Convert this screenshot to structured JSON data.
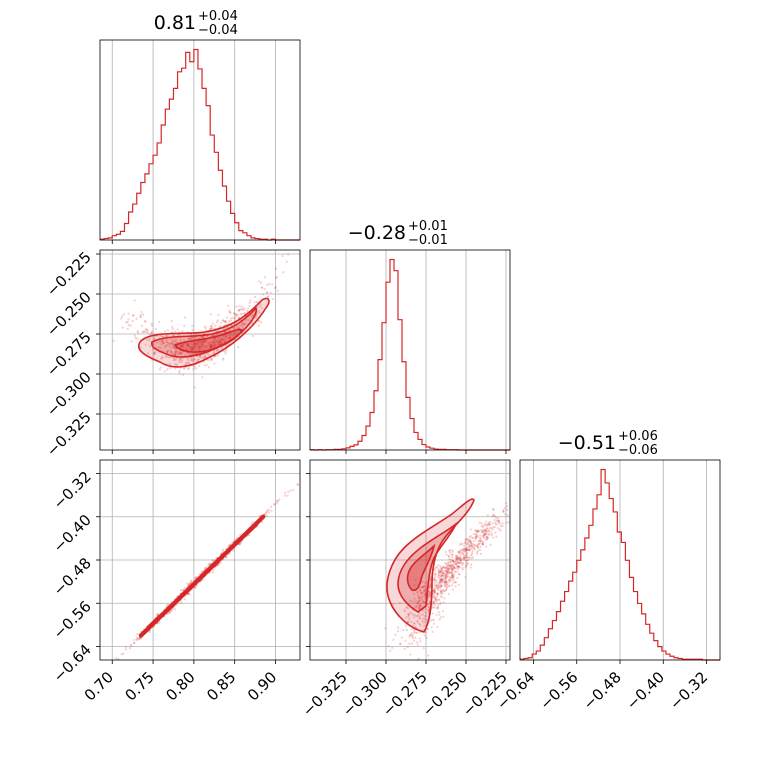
{
  "chart_data": {
    "type": "corner",
    "color": "#d62728",
    "grid": true,
    "parameters": [
      {
        "median": "0.81",
        "plus": "+0.04",
        "minus": "−0.04",
        "range": [
          0.685,
          0.93
        ],
        "ticks": [
          0.7,
          0.75,
          0.8,
          0.85,
          0.9
        ],
        "tick_labels": [
          "0.70",
          "0.75",
          "0.80",
          "0.85",
          "0.90"
        ]
      },
      {
        "median": "−0.28",
        "plus": "+0.01",
        "minus": "−0.01",
        "range": [
          -0.3475,
          -0.2225
        ],
        "ticks": [
          -0.325,
          -0.3,
          -0.275,
          -0.25,
          -0.225
        ],
        "tick_labels": [
          "−0.325",
          "−0.300",
          "−0.275",
          "−0.250",
          "−0.225"
        ]
      },
      {
        "median": "−0.51",
        "plus": "+0.06",
        "minus": "−0.06",
        "range": [
          -0.665,
          -0.295
        ],
        "ticks": [
          -0.64,
          -0.56,
          -0.48,
          -0.4,
          -0.32
        ],
        "tick_labels": [
          "−0.64",
          "−0.56",
          "−0.48",
          "−0.40",
          "−0.32"
        ]
      }
    ],
    "histograms": [
      {
        "param": 0,
        "bin_start": 0.685,
        "bin_width": 0.005,
        "counts": [
          1,
          2,
          3,
          6,
          8,
          12,
          23,
          39,
          50,
          65,
          80,
          92,
          106,
          118,
          135,
          160,
          182,
          196,
          211,
          234,
          239,
          261,
          248,
          265,
          238,
          211,
          187,
          146,
          122,
          97,
          75,
          54,
          37,
          24,
          13,
          10,
          6,
          3,
          2,
          1,
          1,
          0,
          1,
          0,
          0,
          0,
          0,
          0,
          0
        ]
      },
      {
        "param": 1,
        "bin_start": -0.3475,
        "bin_width": 0.0025,
        "counts": [
          1,
          0,
          1,
          0,
          1,
          1,
          2,
          2,
          4,
          7,
          12,
          17,
          29,
          48,
          79,
          124,
          196,
          299,
          421,
          555,
          630,
          593,
          431,
          292,
          174,
          104,
          58,
          35,
          18,
          10,
          6,
          3,
          2,
          2,
          1,
          1,
          1,
          0,
          0,
          0,
          0,
          0,
          0,
          0,
          0,
          0,
          0,
          0,
          0,
          0
        ]
      },
      {
        "param": 2,
        "bin_start": -0.665,
        "bin_width": 0.0075,
        "counts": [
          1,
          2,
          3,
          8,
          12,
          20,
          30,
          42,
          53,
          65,
          79,
          92,
          106,
          118,
          134,
          148,
          164,
          181,
          203,
          222,
          256,
          238,
          217,
          199,
          172,
          158,
          134,
          111,
          92,
          76,
          62,
          48,
          36,
          26,
          18,
          12,
          8,
          5,
          3,
          2,
          1,
          1,
          1,
          1,
          1,
          0,
          0,
          0,
          0,
          0
        ]
      }
    ],
    "pair_panels": [
      {
        "x_param": 0,
        "y_param": 1,
        "center": [
          0.81,
          -0.283
        ],
        "relation": "-0.283 + 3.5*(x-0.81)^2 + 0.15*(x-0.81)"
      },
      {
        "x_param": 0,
        "y_param": 2,
        "center": [
          0.81,
          -0.51
        ],
        "relation": "-0.51 + 1.47*(x-0.81)"
      },
      {
        "x_param": 1,
        "y_param": 2,
        "center": [
          -0.281,
          -0.51
        ],
        "relation": "curved lower-left tail rising to upper-right"
      }
    ]
  }
}
